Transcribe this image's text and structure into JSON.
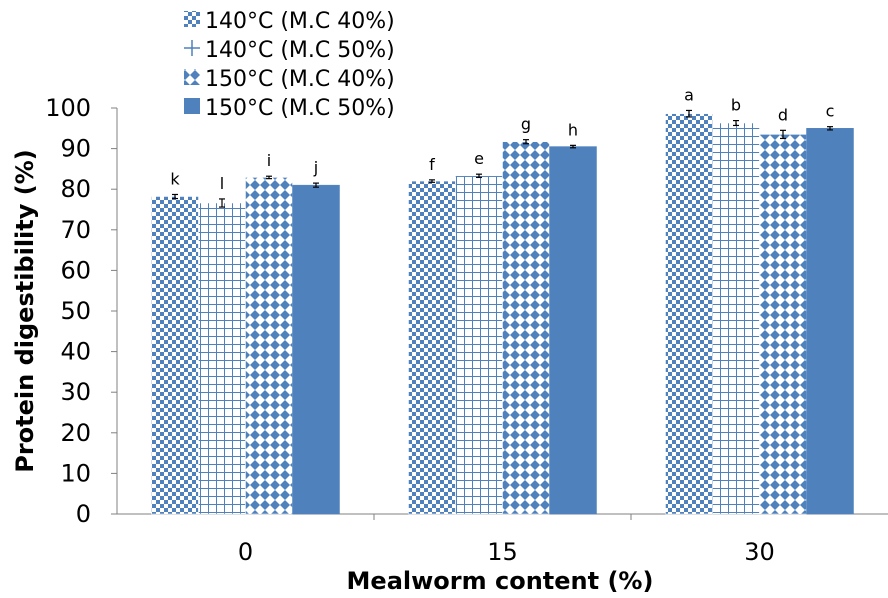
{
  "colors": {
    "bar": "#4f81bd",
    "bar_light": "#ffffff",
    "axis": "#808080",
    "error": "#000000"
  },
  "chart_data": {
    "type": "bar",
    "xlabel": "Mealworm content (%)",
    "ylabel": "Protein digestibility (%)",
    "ylim": [
      0,
      100
    ],
    "yticks": [
      0,
      10,
      20,
      30,
      40,
      50,
      60,
      70,
      80,
      90,
      100
    ],
    "categories": [
      "0",
      "15",
      "30"
    ],
    "grid": false,
    "legend_position": "top-left",
    "series": [
      {
        "name": "140°C (M.C 40%)",
        "pattern": "checker",
        "values": [
          78.2,
          82.0,
          98.6
        ],
        "errors": [
          0.5,
          0.3,
          0.8
        ],
        "labels": [
          "k",
          "f",
          "a"
        ]
      },
      {
        "name": "140°C (M.C 50%)",
        "pattern": "grid",
        "values": [
          76.6,
          83.3,
          96.3
        ],
        "errors": [
          1.0,
          0.4,
          0.6
        ],
        "labels": [
          "l",
          "e",
          "b"
        ]
      },
      {
        "name": "150°C (M.C 40%)",
        "pattern": "diamond",
        "values": [
          82.9,
          91.7,
          93.5
        ],
        "errors": [
          0.3,
          0.5,
          1.0
        ],
        "labels": [
          "i",
          "g",
          "d"
        ]
      },
      {
        "name": "150°C (M.C 50%)",
        "pattern": "solid",
        "values": [
          81.0,
          90.5,
          95.0
        ],
        "errors": [
          0.5,
          0.3,
          0.4
        ],
        "labels": [
          "j",
          "h",
          "c"
        ]
      }
    ]
  }
}
